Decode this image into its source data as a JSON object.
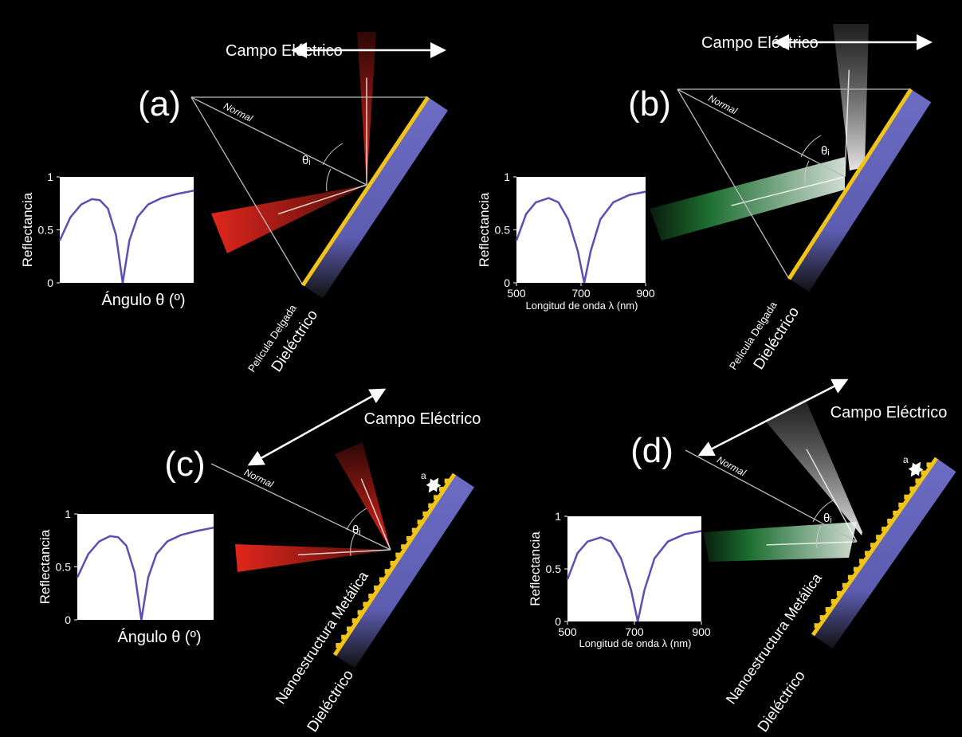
{
  "panels": [
    {
      "label": "(a)",
      "field_label": "Campo Eléctrico",
      "normal_label": "Normal",
      "theta_label": "θᵢ",
      "layer_labels": [
        "Película Delgada",
        "Dieléctrico"
      ],
      "chart": {
        "type": "line",
        "ylabel": "Reflectancia",
        "xlabel": "Ángulo θ (º)",
        "ylim": [
          0,
          1
        ],
        "yticks": [
          0,
          0.5,
          1
        ],
        "xlim": [
          0,
          1
        ],
        "color": "#5a4fb4",
        "x": [
          0,
          0.08,
          0.16,
          0.24,
          0.3,
          0.36,
          0.42,
          0.47,
          0.52,
          0.58,
          0.66,
          0.76,
          0.88,
          1
        ],
        "values": [
          0.4,
          0.62,
          0.74,
          0.79,
          0.78,
          0.7,
          0.45,
          0,
          0.4,
          0.62,
          0.74,
          0.8,
          0.84,
          0.87
        ]
      }
    },
    {
      "label": "(b)",
      "field_label": "Campo Eléctrico",
      "normal_label": "Normal",
      "theta_label": "θᵢ",
      "layer_labels": [
        "Película Delgada",
        "Dieléctrico"
      ],
      "chart": {
        "type": "line",
        "ylabel": "Reflectancia",
        "xlabel": "Longitud de onda λ (nm)",
        "ylim": [
          0,
          1
        ],
        "yticks": [
          0,
          0.5,
          1
        ],
        "xlim": [
          500,
          900
        ],
        "xticks": [
          500,
          700,
          900
        ],
        "color": "#5a4fb4",
        "x": [
          500,
          530,
          560,
          600,
          630,
          660,
          690,
          710,
          730,
          760,
          800,
          850,
          900
        ],
        "values": [
          0.4,
          0.65,
          0.76,
          0.8,
          0.76,
          0.6,
          0.3,
          0,
          0.3,
          0.6,
          0.76,
          0.83,
          0.86
        ]
      }
    },
    {
      "label": "(c)",
      "field_label": "Campo Eléctrico",
      "normal_label": "Normal",
      "theta_label": "θᵢ",
      "layer_labels": [
        "Nanoestructura Metálica",
        "Dieléctrico"
      ],
      "period_label": "a",
      "chart": {
        "type": "line",
        "ylabel": "Reflectancia",
        "xlabel": "Ángulo θ (º)",
        "ylim": [
          0,
          1
        ],
        "yticks": [
          0,
          0.5,
          1
        ],
        "xlim": [
          0,
          1
        ],
        "color": "#5a4fb4",
        "x": [
          0,
          0.08,
          0.16,
          0.24,
          0.3,
          0.36,
          0.42,
          0.47,
          0.52,
          0.58,
          0.66,
          0.76,
          0.88,
          1
        ],
        "values": [
          0.4,
          0.62,
          0.74,
          0.79,
          0.78,
          0.7,
          0.45,
          0,
          0.4,
          0.62,
          0.74,
          0.8,
          0.84,
          0.87
        ]
      }
    },
    {
      "label": "(d)",
      "field_label": "Campo Eléctrico",
      "normal_label": "Normal",
      "theta_label": "θᵢ",
      "layer_labels": [
        "Nanoestructura Metálica",
        "Dieléctrico"
      ],
      "period_label": "a",
      "chart": {
        "type": "line",
        "ylabel": "Reflectancia",
        "xlabel": "Longitud de onda λ (nm)",
        "ylim": [
          0,
          1
        ],
        "yticks": [
          0,
          0.5,
          1
        ],
        "xlim": [
          500,
          900
        ],
        "xticks": [
          500,
          700,
          900
        ],
        "color": "#5a4fb4",
        "x": [
          500,
          530,
          560,
          600,
          630,
          660,
          690,
          710,
          730,
          760,
          800,
          850,
          900
        ],
        "values": [
          0.4,
          0.65,
          0.76,
          0.8,
          0.76,
          0.6,
          0.3,
          0,
          0.3,
          0.6,
          0.76,
          0.83,
          0.86
        ]
      }
    }
  ]
}
